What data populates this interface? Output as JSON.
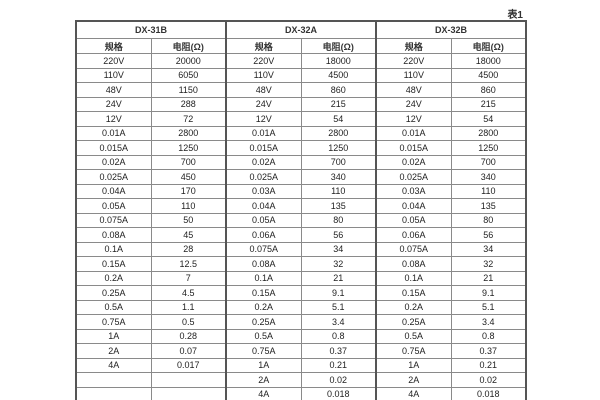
{
  "caption": "表1",
  "table": {
    "groups": [
      {
        "name": "DX-31B",
        "spec_label": "规格",
        "res_label": "电阻(Ω)"
      },
      {
        "name": "DX-32A",
        "spec_label": "规格",
        "res_label": "电阻(Ω)"
      },
      {
        "name": "DX-32B",
        "spec_label": "规格",
        "res_label": "电阻(Ω)"
      }
    ],
    "rows": [
      [
        "220V",
        "20000",
        "220V",
        "18000",
        "220V",
        "18000"
      ],
      [
        "110V",
        "6050",
        "110V",
        "4500",
        "110V",
        "4500"
      ],
      [
        "48V",
        "1150",
        "48V",
        "860",
        "48V",
        "860"
      ],
      [
        "24V",
        "288",
        "24V",
        "215",
        "24V",
        "215"
      ],
      [
        "12V",
        "72",
        "12V",
        "54",
        "12V",
        "54"
      ],
      [
        "0.01A",
        "2800",
        "0.01A",
        "2800",
        "0.01A",
        "2800"
      ],
      [
        "0.015A",
        "1250",
        "0.015A",
        "1250",
        "0.015A",
        "1250"
      ],
      [
        "0.02A",
        "700",
        "0.02A",
        "700",
        "0.02A",
        "700"
      ],
      [
        "0.025A",
        "450",
        "0.025A",
        "340",
        "0.025A",
        "340"
      ],
      [
        "0.04A",
        "170",
        "0.03A",
        "110",
        "0.03A",
        "110"
      ],
      [
        "0.05A",
        "110",
        "0.04A",
        "135",
        "0.04A",
        "135"
      ],
      [
        "0.075A",
        "50",
        "0.05A",
        "80",
        "0.05A",
        "80"
      ],
      [
        "0.08A",
        "45",
        "0.06A",
        "56",
        "0.06A",
        "56"
      ],
      [
        "0.1A",
        "28",
        "0.075A",
        "34",
        "0.075A",
        "34"
      ],
      [
        "0.15A",
        "12.5",
        "0.08A",
        "32",
        "0.08A",
        "32"
      ],
      [
        "0.2A",
        "7",
        "0.1A",
        "21",
        "0.1A",
        "21"
      ],
      [
        "0.25A",
        "4.5",
        "0.15A",
        "9.1",
        "0.15A",
        "9.1"
      ],
      [
        "0.5A",
        "1.1",
        "0.2A",
        "5.1",
        "0.2A",
        "5.1"
      ],
      [
        "0.75A",
        "0.5",
        "0.25A",
        "3.4",
        "0.25A",
        "3.4"
      ],
      [
        "1A",
        "0.28",
        "0.5A",
        "0.8",
        "0.5A",
        "0.8"
      ],
      [
        "2A",
        "0.07",
        "0.75A",
        "0.37",
        "0.75A",
        "0.37"
      ],
      [
        "4A",
        "0.017",
        "1A",
        "0.21",
        "1A",
        "0.21"
      ],
      [
        "",
        "",
        "2A",
        "0.02",
        "2A",
        "0.02"
      ],
      [
        "",
        "",
        "4A",
        "0.018",
        "4A",
        "0.018"
      ]
    ]
  },
  "colors": {
    "border_outer": "#555555",
    "border_inner": "#8a8a8a",
    "text": "#222222",
    "background": "#ffffff"
  }
}
